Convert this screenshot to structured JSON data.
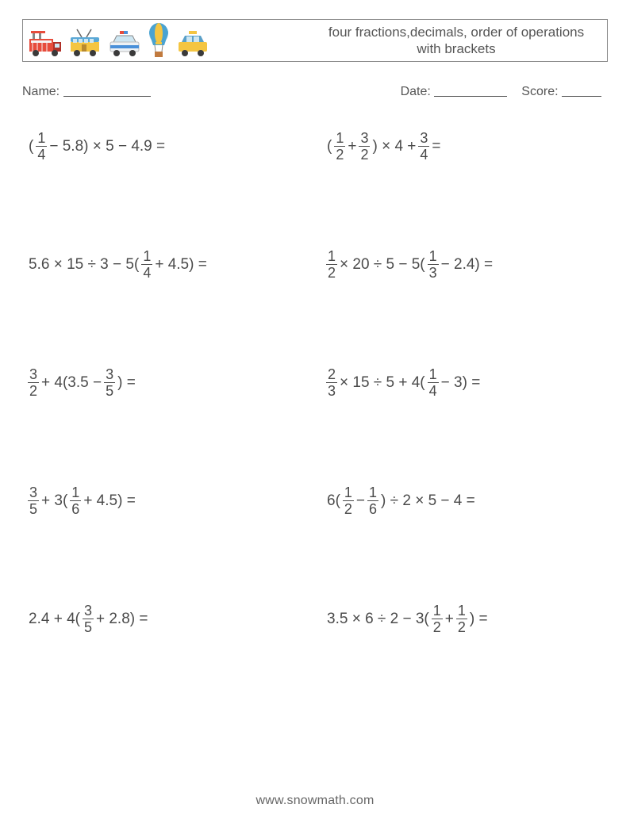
{
  "header": {
    "title_line1": "four fractions,decimals, order of operations",
    "title_line2": "with brackets"
  },
  "info": {
    "name_label": "Name:",
    "date_label": "Date:",
    "score_label": "Score:",
    "name_underline_width": 110,
    "date_underline_width": 92,
    "score_underline_width": 50
  },
  "icons": {
    "fire_truck": "fire-truck",
    "trolley_bus": "trolley-bus",
    "police_car": "police-car",
    "balloon": "hot-air-balloon",
    "taxi": "taxi"
  },
  "colors": {
    "text": "#4a4a4a",
    "border": "#888888",
    "fire_truck_body": "#e74c3c",
    "fire_truck_dark": "#b03028",
    "trolley_body": "#f4c542",
    "trolley_roof": "#5aa8d6",
    "police_body": "#eef2f5",
    "police_accent": "#4a90d9",
    "police_red": "#e74c3c",
    "balloon_top": "#4aa3d1",
    "balloon_mid": "#8cc6e6",
    "balloon_stripe": "#f4c542",
    "balloon_basket": "#c17a3e",
    "taxi_body": "#f4c542",
    "taxi_top": "#5aa0c8",
    "wheel": "#3a3a3a",
    "window": "#cde6f2"
  },
  "problems": [
    {
      "parts": [
        "(",
        {
          "f": [
            1,
            4
          ]
        },
        " − 5.8) × 5 − 4.9 ="
      ]
    },
    {
      "parts": [
        "(",
        {
          "f": [
            1,
            2
          ]
        },
        " + ",
        {
          "f": [
            3,
            2
          ]
        },
        ") × 4 + ",
        {
          "f": [
            3,
            4
          ]
        },
        " ="
      ]
    },
    {
      "parts": [
        "5.6 × 15 ÷ 3 − 5(",
        {
          "f": [
            1,
            4
          ]
        },
        " + 4.5) ="
      ]
    },
    {
      "parts": [
        {
          "f": [
            1,
            2
          ]
        },
        " × 20 ÷ 5 − 5(",
        {
          "f": [
            1,
            3
          ]
        },
        " − 2.4) ="
      ]
    },
    {
      "parts": [
        {
          "f": [
            3,
            2
          ]
        },
        " + 4(3.5 − ",
        {
          "f": [
            3,
            5
          ]
        },
        ") ="
      ]
    },
    {
      "parts": [
        {
          "f": [
            2,
            3
          ]
        },
        " × 15 ÷ 5 + 4(",
        {
          "f": [
            1,
            4
          ]
        },
        " − 3) ="
      ]
    },
    {
      "parts": [
        {
          "f": [
            3,
            5
          ]
        },
        " + 3(",
        {
          "f": [
            1,
            6
          ]
        },
        " + 4.5) ="
      ]
    },
    {
      "parts": [
        "6(",
        {
          "f": [
            1,
            2
          ]
        },
        " − ",
        {
          "f": [
            1,
            6
          ]
        },
        ") ÷ 2 × 5 − 4 ="
      ]
    },
    {
      "parts": [
        "2.4 + 4(",
        {
          "f": [
            3,
            5
          ]
        },
        " + 2.8) ="
      ]
    },
    {
      "parts": [
        "3.5 × 6 ÷ 2 − 3(",
        {
          "f": [
            1,
            2
          ]
        },
        " + ",
        {
          "f": [
            1,
            2
          ]
        },
        ") ="
      ]
    }
  ],
  "footer": "www.snowmath.com"
}
